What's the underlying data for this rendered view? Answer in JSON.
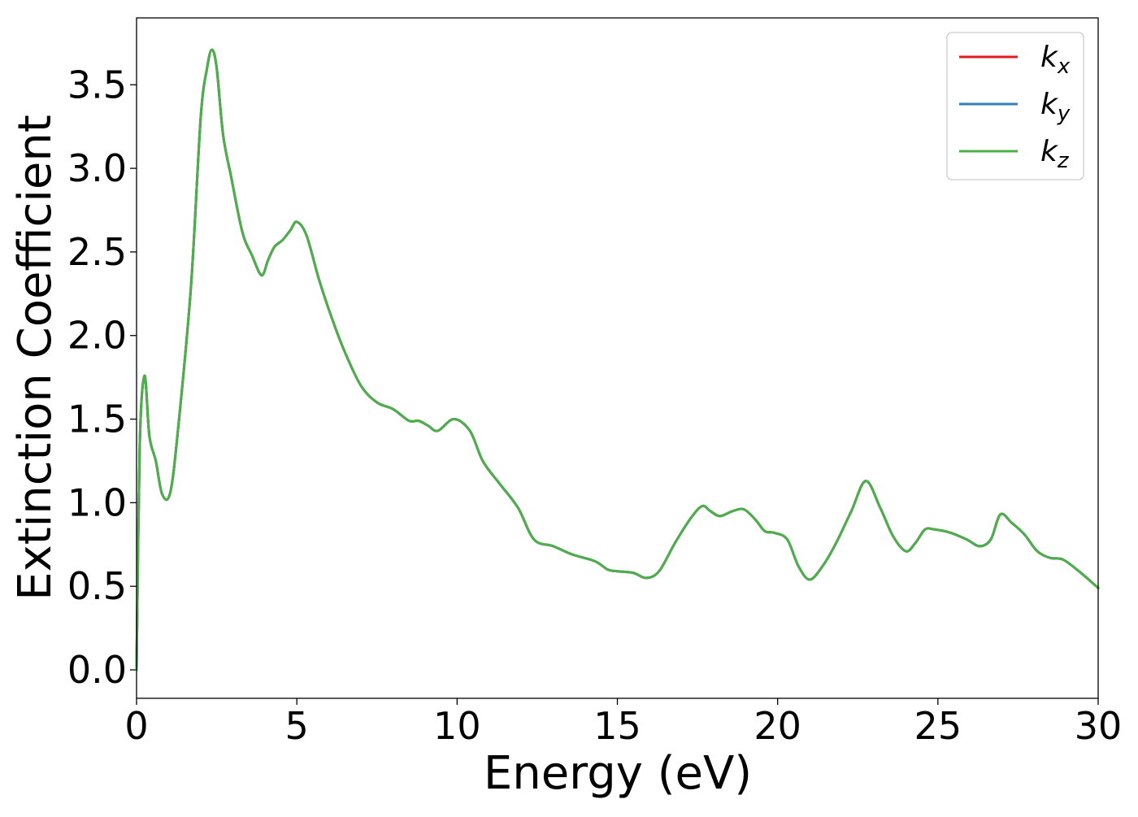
{
  "chart_data": {
    "type": "line",
    "title": "",
    "xlabel": "Energy (eV)",
    "ylabel": "Extinction Coefficient",
    "xlim": [
      0,
      30
    ],
    "ylim": [
      -0.17,
      3.9
    ],
    "x_ticks": [
      0,
      5,
      10,
      15,
      20,
      25,
      30
    ],
    "x_tick_labels": [
      "0",
      "5",
      "10",
      "15",
      "20",
      "25",
      "30"
    ],
    "y_ticks": [
      0.0,
      0.5,
      1.0,
      1.5,
      2.0,
      2.5,
      3.0,
      3.5
    ],
    "y_tick_labels": [
      "0.0",
      "0.5",
      "1.0",
      "1.5",
      "2.0",
      "2.5",
      "3.0",
      "3.5"
    ],
    "grid": false,
    "legend_position": "top-right",
    "x": [
      0,
      0.1,
      0.25,
      0.4,
      0.6,
      0.8,
      1.05,
      1.3,
      1.7,
      2.0,
      2.2,
      2.35,
      2.5,
      2.7,
      2.95,
      3.3,
      3.6,
      3.9,
      4.1,
      4.3,
      4.55,
      4.8,
      5.0,
      5.3,
      5.7,
      6.1,
      6.5,
      7.0,
      7.5,
      8.0,
      8.5,
      8.8,
      9.1,
      9.4,
      9.9,
      10.4,
      10.8,
      11.3,
      11.9,
      12.4,
      13.0,
      13.6,
      14.3,
      14.7,
      15.0,
      15.5,
      15.9,
      16.3,
      16.8,
      17.3,
      17.65,
      17.9,
      18.2,
      18.6,
      18.95,
      19.3,
      19.6,
      19.9,
      20.3,
      20.65,
      21.0,
      21.4,
      21.8,
      22.3,
      22.75,
      23.2,
      23.6,
      24.0,
      24.3,
      24.6,
      24.9,
      25.4,
      25.9,
      26.3,
      26.65,
      26.95,
      27.3,
      27.7,
      28.1,
      28.5,
      28.9,
      29.4,
      30.0
    ],
    "series": [
      {
        "name": "k_x",
        "color": "#e41a1c",
        "values": [
          0.0,
          1.35,
          1.76,
          1.4,
          1.25,
          1.05,
          1.06,
          1.45,
          2.3,
          3.3,
          3.6,
          3.71,
          3.6,
          3.2,
          2.95,
          2.62,
          2.48,
          2.36,
          2.45,
          2.53,
          2.57,
          2.63,
          2.68,
          2.6,
          2.33,
          2.1,
          1.9,
          1.7,
          1.6,
          1.56,
          1.49,
          1.49,
          1.46,
          1.43,
          1.5,
          1.43,
          1.25,
          1.12,
          0.97,
          0.78,
          0.74,
          0.69,
          0.65,
          0.6,
          0.59,
          0.58,
          0.55,
          0.59,
          0.76,
          0.91,
          0.98,
          0.95,
          0.92,
          0.95,
          0.96,
          0.9,
          0.83,
          0.82,
          0.78,
          0.62,
          0.54,
          0.62,
          0.75,
          0.95,
          1.13,
          0.97,
          0.8,
          0.71,
          0.76,
          0.84,
          0.84,
          0.82,
          0.78,
          0.74,
          0.78,
          0.93,
          0.88,
          0.81,
          0.71,
          0.67,
          0.66,
          0.59,
          0.49
        ]
      },
      {
        "name": "k_y",
        "color": "#377eb8",
        "values": [
          0.0,
          1.35,
          1.76,
          1.4,
          1.25,
          1.05,
          1.06,
          1.45,
          2.3,
          3.3,
          3.6,
          3.71,
          3.6,
          3.2,
          2.95,
          2.62,
          2.48,
          2.36,
          2.45,
          2.53,
          2.57,
          2.63,
          2.68,
          2.6,
          2.33,
          2.1,
          1.9,
          1.7,
          1.6,
          1.56,
          1.49,
          1.49,
          1.46,
          1.43,
          1.5,
          1.43,
          1.25,
          1.12,
          0.97,
          0.78,
          0.74,
          0.69,
          0.65,
          0.6,
          0.59,
          0.58,
          0.55,
          0.59,
          0.76,
          0.91,
          0.98,
          0.95,
          0.92,
          0.95,
          0.96,
          0.9,
          0.83,
          0.82,
          0.78,
          0.62,
          0.54,
          0.62,
          0.75,
          0.95,
          1.13,
          0.97,
          0.8,
          0.71,
          0.76,
          0.84,
          0.84,
          0.82,
          0.78,
          0.74,
          0.78,
          0.93,
          0.88,
          0.81,
          0.71,
          0.67,
          0.66,
          0.59,
          0.49
        ]
      },
      {
        "name": "k_z",
        "color": "#4daf4a",
        "values": [
          0.0,
          1.35,
          1.76,
          1.4,
          1.25,
          1.05,
          1.06,
          1.45,
          2.3,
          3.3,
          3.6,
          3.71,
          3.6,
          3.2,
          2.95,
          2.62,
          2.48,
          2.36,
          2.45,
          2.53,
          2.57,
          2.63,
          2.68,
          2.6,
          2.33,
          2.1,
          1.9,
          1.7,
          1.6,
          1.56,
          1.49,
          1.49,
          1.46,
          1.43,
          1.5,
          1.43,
          1.25,
          1.12,
          0.97,
          0.78,
          0.74,
          0.69,
          0.65,
          0.6,
          0.59,
          0.58,
          0.55,
          0.59,
          0.76,
          0.91,
          0.98,
          0.95,
          0.92,
          0.95,
          0.96,
          0.9,
          0.83,
          0.82,
          0.78,
          0.62,
          0.54,
          0.62,
          0.75,
          0.95,
          1.13,
          0.97,
          0.8,
          0.71,
          0.76,
          0.84,
          0.84,
          0.82,
          0.78,
          0.74,
          0.78,
          0.93,
          0.88,
          0.81,
          0.71,
          0.67,
          0.66,
          0.59,
          0.49
        ]
      }
    ],
    "legend": [
      {
        "symbol": "k",
        "subscript": "x",
        "color": "#e41a1c"
      },
      {
        "symbol": "k",
        "subscript": "y",
        "color": "#377eb8"
      },
      {
        "symbol": "k",
        "subscript": "z",
        "color": "#4daf4a"
      }
    ]
  }
}
